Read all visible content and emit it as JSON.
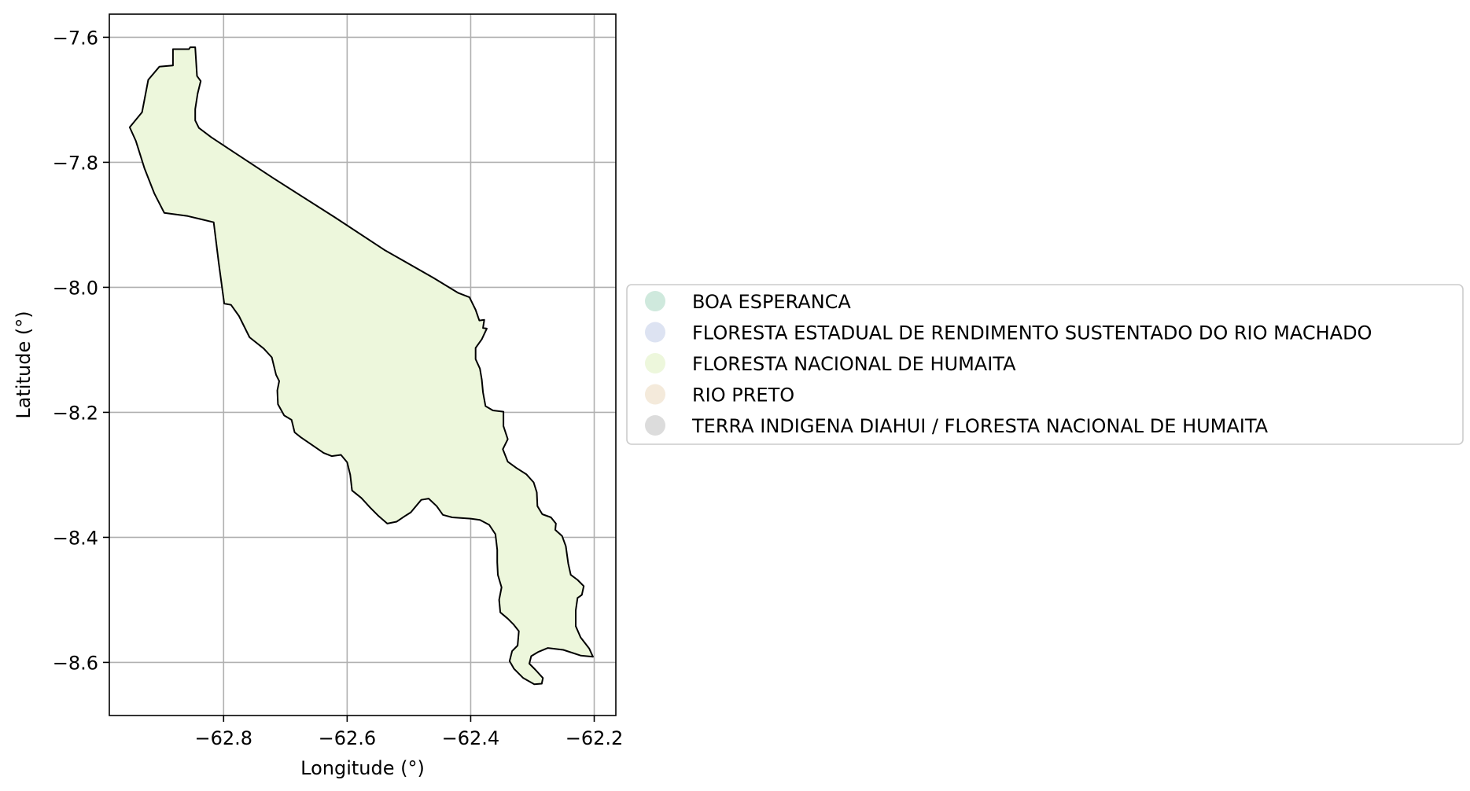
{
  "chart_data": {
    "type": "map",
    "xlabel": "Longitude (°)",
    "ylabel": "Latitude (°)",
    "xlim": [
      -62.985,
      -62.165
    ],
    "ylim": [
      -8.685,
      -7.563
    ],
    "x_ticks": [
      {
        "value": -62.8,
        "label": "−62.8"
      },
      {
        "value": -62.6,
        "label": "−62.6"
      },
      {
        "value": -62.4,
        "label": "−62.4"
      },
      {
        "value": -62.2,
        "label": "−62.2"
      }
    ],
    "y_ticks": [
      {
        "value": -7.6,
        "label": "−7.6"
      },
      {
        "value": -7.8,
        "label": "−7.8"
      },
      {
        "value": -8.0,
        "label": "−8.0"
      },
      {
        "value": -8.2,
        "label": "−8.2"
      },
      {
        "value": -8.4,
        "label": "−8.4"
      },
      {
        "value": -8.6,
        "label": "−8.6"
      }
    ],
    "grid": true,
    "legend_position": "center-left outside, right of plot",
    "legend": [
      {
        "label": "BOA ESPERANCA",
        "color": "#cfe9dd"
      },
      {
        "label": "FLORESTA ESTADUAL DE RENDIMENTO SUSTENTADO DO RIO MACHADO",
        "color": "#dde3f2"
      },
      {
        "label": "FLORESTA NACIONAL DE HUMAITA",
        "color": "#edf7dc"
      },
      {
        "label": "RIO PRETO",
        "color": "#f4eadb"
      },
      {
        "label": "TERRA INDIGENA DIAHUI / FLORESTA NACIONAL DE HUMAITA",
        "color": "#dcdcdc"
      }
    ],
    "polygon": {
      "name": "FLORESTA NACIONAL DE HUMAITA",
      "fill": "#edf7dc",
      "stroke": "#000000",
      "coords": [
        [
          -62.882,
          -7.619
        ],
        [
          -62.856,
          -7.619
        ],
        [
          -62.854,
          -7.616
        ],
        [
          -62.846,
          -7.616
        ],
        [
          -62.843,
          -7.662
        ],
        [
          -62.837,
          -7.67
        ],
        [
          -62.842,
          -7.69
        ],
        [
          -62.846,
          -7.715
        ],
        [
          -62.846,
          -7.733
        ],
        [
          -62.84,
          -7.745
        ],
        [
          -62.82,
          -7.76
        ],
        [
          -62.78,
          -7.786
        ],
        [
          -62.72,
          -7.825
        ],
        [
          -62.62,
          -7.888
        ],
        [
          -62.54,
          -7.94
        ],
        [
          -62.46,
          -7.985
        ],
        [
          -62.42,
          -8.009
        ],
        [
          -62.402,
          -8.016
        ],
        [
          -62.392,
          -8.036
        ],
        [
          -62.386,
          -8.053
        ],
        [
          -62.378,
          -8.052
        ],
        [
          -62.38,
          -8.065
        ],
        [
          -62.374,
          -8.066
        ],
        [
          -62.382,
          -8.083
        ],
        [
          -62.392,
          -8.097
        ],
        [
          -62.392,
          -8.115
        ],
        [
          -62.385,
          -8.13
        ],
        [
          -62.382,
          -8.148
        ],
        [
          -62.38,
          -8.168
        ],
        [
          -62.376,
          -8.19
        ],
        [
          -62.364,
          -8.197
        ],
        [
          -62.347,
          -8.199
        ],
        [
          -62.347,
          -8.222
        ],
        [
          -62.34,
          -8.243
        ],
        [
          -62.348,
          -8.259
        ],
        [
          -62.34,
          -8.279
        ],
        [
          -62.326,
          -8.289
        ],
        [
          -62.31,
          -8.299
        ],
        [
          -62.298,
          -8.312
        ],
        [
          -62.293,
          -8.328
        ],
        [
          -62.292,
          -8.35
        ],
        [
          -62.284,
          -8.363
        ],
        [
          -62.27,
          -8.368
        ],
        [
          -62.262,
          -8.378
        ],
        [
          -62.263,
          -8.388
        ],
        [
          -62.252,
          -8.398
        ],
        [
          -62.246,
          -8.414
        ],
        [
          -62.242,
          -8.442
        ],
        [
          -62.238,
          -8.46
        ],
        [
          -62.227,
          -8.468
        ],
        [
          -62.217,
          -8.478
        ],
        [
          -62.22,
          -8.492
        ],
        [
          -62.227,
          -8.497
        ],
        [
          -62.23,
          -8.517
        ],
        [
          -62.23,
          -8.542
        ],
        [
          -62.222,
          -8.56
        ],
        [
          -62.208,
          -8.578
        ],
        [
          -62.202,
          -8.591
        ],
        [
          -62.222,
          -8.589
        ],
        [
          -62.25,
          -8.58
        ],
        [
          -62.275,
          -8.577
        ],
        [
          -62.29,
          -8.583
        ],
        [
          -62.302,
          -8.59
        ],
        [
          -62.305,
          -8.602
        ],
        [
          -62.295,
          -8.612
        ],
        [
          -62.283,
          -8.625
        ],
        [
          -62.285,
          -8.634
        ],
        [
          -62.297,
          -8.635
        ],
        [
          -62.315,
          -8.625
        ],
        [
          -62.33,
          -8.61
        ],
        [
          -62.337,
          -8.598
        ],
        [
          -62.333,
          -8.582
        ],
        [
          -62.324,
          -8.573
        ],
        [
          -62.322,
          -8.55
        ],
        [
          -62.33,
          -8.54
        ],
        [
          -62.34,
          -8.53
        ],
        [
          -62.352,
          -8.52
        ],
        [
          -62.354,
          -8.5
        ],
        [
          -62.35,
          -8.48
        ],
        [
          -62.356,
          -8.46
        ],
        [
          -62.357,
          -8.44
        ],
        [
          -62.357,
          -8.42
        ],
        [
          -62.36,
          -8.395
        ],
        [
          -62.37,
          -8.38
        ],
        [
          -62.385,
          -8.372
        ],
        [
          -62.4,
          -8.37
        ],
        [
          -62.43,
          -8.368
        ],
        [
          -62.445,
          -8.364
        ],
        [
          -62.455,
          -8.35
        ],
        [
          -62.468,
          -8.338
        ],
        [
          -62.48,
          -8.34
        ],
        [
          -62.497,
          -8.36
        ],
        [
          -62.505,
          -8.365
        ],
        [
          -62.52,
          -8.375
        ],
        [
          -62.535,
          -8.378
        ],
        [
          -62.55,
          -8.365
        ],
        [
          -62.563,
          -8.352
        ],
        [
          -62.577,
          -8.337
        ],
        [
          -62.592,
          -8.325
        ],
        [
          -62.595,
          -8.3
        ],
        [
          -62.6,
          -8.28
        ],
        [
          -62.61,
          -8.268
        ],
        [
          -62.625,
          -8.27
        ],
        [
          -62.638,
          -8.265
        ],
        [
          -62.66,
          -8.25
        ],
        [
          -62.675,
          -8.24
        ],
        [
          -62.685,
          -8.232
        ],
        [
          -62.69,
          -8.212
        ],
        [
          -62.702,
          -8.205
        ],
        [
          -62.712,
          -8.187
        ],
        [
          -62.713,
          -8.165
        ],
        [
          -62.71,
          -8.15
        ],
        [
          -62.715,
          -8.14
        ],
        [
          -62.722,
          -8.112
        ],
        [
          -62.735,
          -8.098
        ],
        [
          -62.758,
          -8.08
        ],
        [
          -62.775,
          -8.046
        ],
        [
          -62.788,
          -8.028
        ],
        [
          -62.799,
          -8.026
        ],
        [
          -62.808,
          -7.96
        ],
        [
          -62.816,
          -7.896
        ],
        [
          -62.858,
          -7.886
        ],
        [
          -62.896,
          -7.881
        ],
        [
          -62.912,
          -7.85
        ],
        [
          -62.928,
          -7.81
        ],
        [
          -62.942,
          -7.766
        ],
        [
          -62.952,
          -7.744
        ],
        [
          -62.932,
          -7.72
        ],
        [
          -62.922,
          -7.668
        ],
        [
          -62.904,
          -7.647
        ],
        [
          -62.882,
          -7.645
        ],
        [
          -62.882,
          -7.619
        ]
      ]
    }
  }
}
